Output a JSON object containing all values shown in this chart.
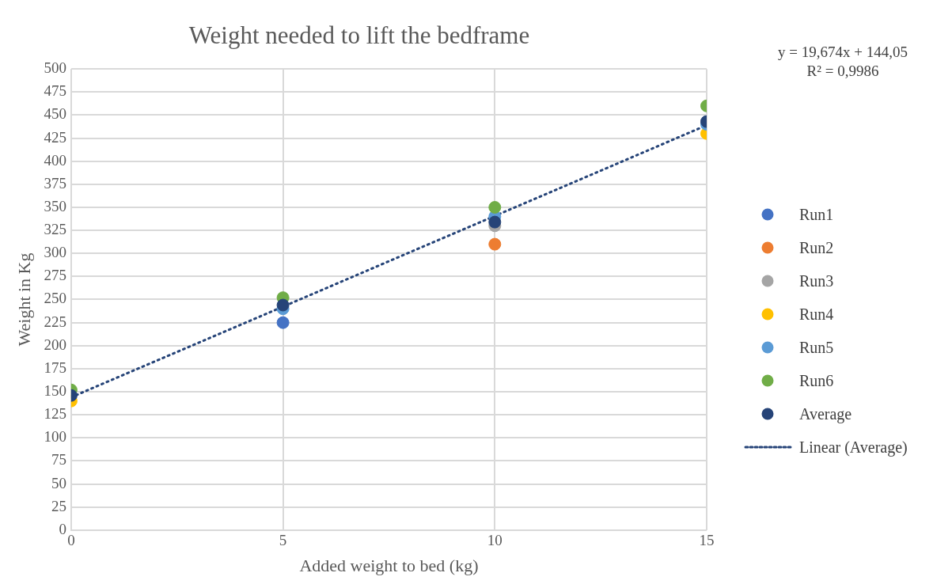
{
  "chart_data": {
    "type": "scatter",
    "title": "Weight needed to lift the bedframe",
    "xlabel": "Added weight to bed (kg)",
    "ylabel": "Weight in Kg",
    "x": [
      0,
      5,
      10,
      15
    ],
    "series": [
      {
        "name": "Run1",
        "color": "#4472c4",
        "values": [
          null,
          225,
          null,
          null
        ]
      },
      {
        "name": "Run2",
        "color": "#ed7d31",
        "values": [
          null,
          null,
          310,
          null
        ]
      },
      {
        "name": "Run3",
        "color": "#a5a5a5",
        "values": [
          null,
          null,
          330,
          null
        ]
      },
      {
        "name": "Run4",
        "color": "#ffc000",
        "values": [
          140,
          null,
          null,
          430
        ]
      },
      {
        "name": "Run5",
        "color": "#5b9bd5",
        "values": [
          null,
          240,
          340,
          440
        ]
      },
      {
        "name": "Run6",
        "color": "#70ad47",
        "values": [
          152,
          252,
          350,
          460
        ]
      },
      {
        "name": "Average",
        "color": "#264478",
        "values": [
          146,
          244,
          334,
          443
        ]
      },
      {
        "name": "Linear (Average)",
        "type": "line",
        "color": "#264478",
        "line_style": "dotted",
        "marker": "none",
        "x": [
          0,
          15
        ],
        "values": [
          144,
          439
        ]
      }
    ],
    "xlim": [
      0,
      15
    ],
    "xticks": [
      0,
      5,
      10,
      15
    ],
    "ylim": [
      0,
      500
    ],
    "yticks": [
      0,
      25,
      50,
      75,
      100,
      125,
      150,
      175,
      200,
      225,
      250,
      275,
      300,
      325,
      350,
      375,
      400,
      425,
      450,
      475,
      500
    ],
    "grid": true,
    "legend": "right",
    "marker": "circle",
    "annotations": [
      "y = 19,674x + 144,05",
      "R² = 0,9986"
    ]
  }
}
